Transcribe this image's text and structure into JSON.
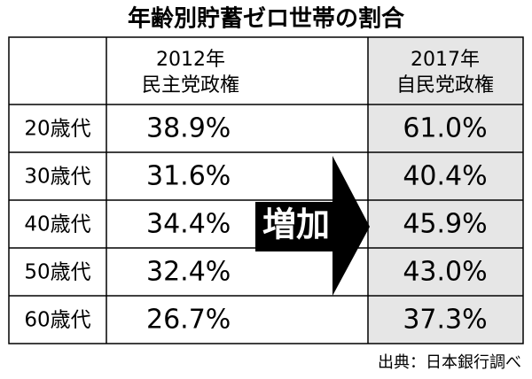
{
  "title": "年齢別貯蓄ゼロ世帯の割合",
  "table": {
    "headers": [
      {
        "year": "2012年",
        "label": "民主党政権"
      },
      {
        "year": "2017年",
        "label": "自民党政権"
      }
    ],
    "rows": [
      [
        "20歳代",
        "38.9%",
        "61.0%"
      ],
      [
        "30歳代",
        "31.6%",
        "40.4%"
      ],
      [
        "40歳代",
        "34.4%",
        "45.9%"
      ],
      [
        "50歳代",
        "32.4%",
        "43.0%"
      ],
      [
        "60歳代",
        "26.7%",
        "37.3%"
      ]
    ]
  },
  "arrow_label": "増加",
  "source": "出典：日本銀行調べ"
}
